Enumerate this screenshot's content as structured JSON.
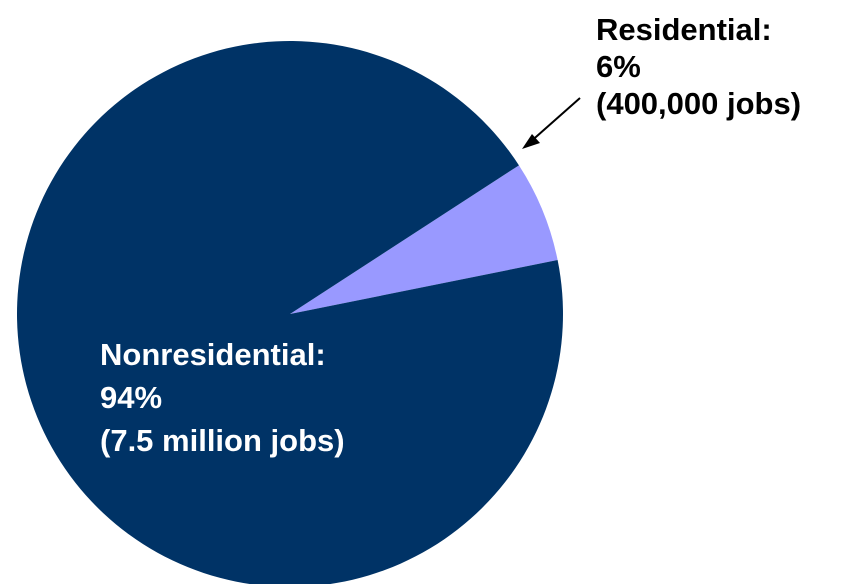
{
  "chart_data": {
    "type": "pie",
    "slices": [
      {
        "name": "Residential",
        "value": 6,
        "color": "#9999FF",
        "label_lines": [
          "Residential:",
          "6%",
          "(400,000 jobs)"
        ],
        "label_color": "#000000"
      },
      {
        "name": "Nonresidential",
        "value": 94,
        "color": "#003366",
        "label_lines": [
          "Nonresidential:",
          "94%",
          "(7.5 million jobs)"
        ],
        "label_color": "#ffffff"
      }
    ]
  }
}
